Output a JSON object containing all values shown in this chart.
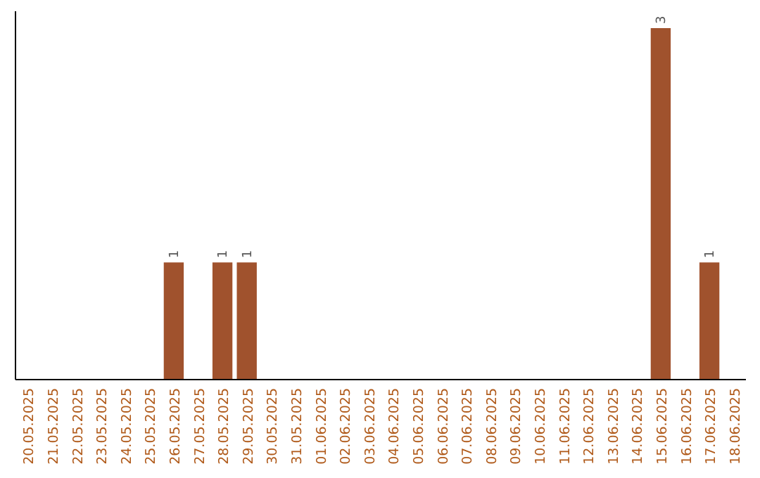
{
  "chart_data": {
    "type": "bar",
    "categories": [
      "20.05.2025",
      "21.05.2025",
      "22.05.2025",
      "23.05.2025",
      "24.05.2025",
      "25.05.2025",
      "26.05.2025",
      "27.05.2025",
      "28.05.2025",
      "29.05.2025",
      "30.05.2025",
      "31.05.2025",
      "01.06.2025",
      "02.06.2025",
      "03.06.2025",
      "04.06.2025",
      "05.06.2025",
      "06.06.2025",
      "07.06.2025",
      "08.06.2025",
      "09.06.2025",
      "10.06.2025",
      "11.06.2025",
      "12.06.2025",
      "13.06.2025",
      "14.06.2025",
      "15.06.2025",
      "16.06.2025",
      "17.06.2025",
      "18.06.2025"
    ],
    "values": [
      0,
      0,
      0,
      0,
      0,
      0,
      1,
      0,
      1,
      1,
      0,
      0,
      0,
      0,
      0,
      0,
      0,
      0,
      0,
      0,
      0,
      0,
      0,
      0,
      0,
      0,
      3,
      0,
      1,
      0
    ],
    "value_labels": [
      null,
      null,
      null,
      null,
      null,
      null,
      "1",
      null,
      "1",
      "1",
      null,
      null,
      null,
      null,
      null,
      null,
      null,
      null,
      null,
      null,
      null,
      null,
      null,
      null,
      null,
      null,
      "3",
      null,
      "1",
      null
    ],
    "color": "#a0522d",
    "tick_labels": "x"
  }
}
